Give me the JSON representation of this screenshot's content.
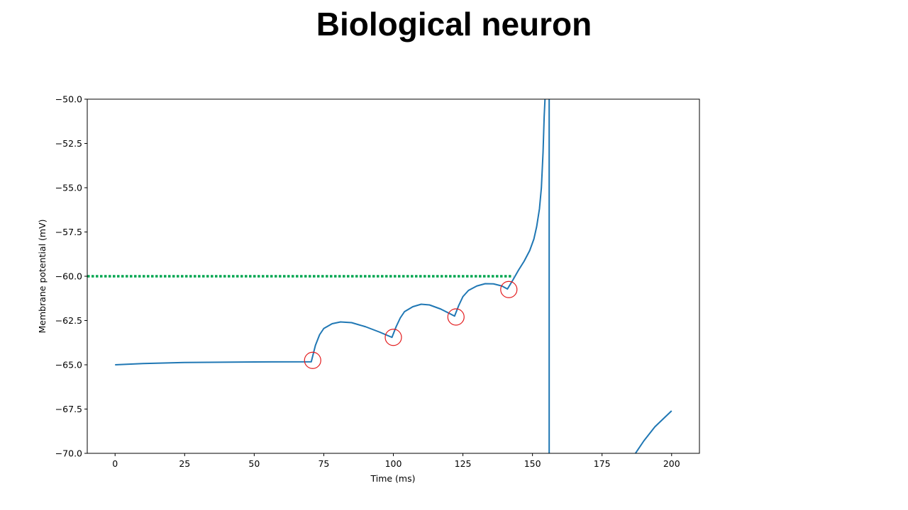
{
  "slide": {
    "title": "Biological neuron"
  },
  "chart_data": {
    "type": "line",
    "xlabel": "Time (ms)",
    "ylabel": "Membrane potential (mV)",
    "xlim": [
      -10,
      210
    ],
    "ylim": [
      -70.0,
      -50.0
    ],
    "xticks": [
      0,
      25,
      50,
      75,
      100,
      125,
      150,
      175,
      200
    ],
    "xtick_labels": [
      "0",
      "25",
      "50",
      "75",
      "100",
      "125",
      "150",
      "175",
      "200"
    ],
    "yticks": [
      -50.0,
      -52.5,
      -55.0,
      -57.5,
      -60.0,
      -62.5,
      -65.0,
      -67.5,
      -70.0
    ],
    "ytick_labels": [
      "−50.0",
      "−52.5",
      "−55.0",
      "−57.5",
      "−60.0",
      "−62.5",
      "−65.0",
      "−67.5",
      "−70.0"
    ],
    "grid": false,
    "series": [
      {
        "color": "#1f77b4",
        "points": [
          [
            0,
            -65.0
          ],
          [
            10,
            -64.93
          ],
          [
            25,
            -64.87
          ],
          [
            50,
            -64.84
          ],
          [
            70.5,
            -64.83
          ],
          [
            72,
            -63.9
          ],
          [
            73.5,
            -63.3
          ],
          [
            75,
            -62.95
          ],
          [
            78,
            -62.68
          ],
          [
            81,
            -62.58
          ],
          [
            85,
            -62.62
          ],
          [
            90,
            -62.85
          ],
          [
            95,
            -63.15
          ],
          [
            99.5,
            -63.45
          ],
          [
            101,
            -62.85
          ],
          [
            102.5,
            -62.35
          ],
          [
            104,
            -62.0
          ],
          [
            107,
            -61.72
          ],
          [
            110,
            -61.58
          ],
          [
            113,
            -61.62
          ],
          [
            117,
            -61.85
          ],
          [
            122,
            -62.25
          ],
          [
            123.5,
            -61.65
          ],
          [
            125,
            -61.15
          ],
          [
            127,
            -60.8
          ],
          [
            130,
            -60.55
          ],
          [
            133,
            -60.42
          ],
          [
            136,
            -60.43
          ],
          [
            139,
            -60.55
          ],
          [
            141,
            -60.72
          ],
          [
            143,
            -60.2
          ],
          [
            145,
            -59.65
          ],
          [
            147,
            -59.15
          ],
          [
            149,
            -58.55
          ],
          [
            150.5,
            -57.9
          ],
          [
            151.5,
            -57.2
          ],
          [
            152.5,
            -56.2
          ],
          [
            153.2,
            -55.0
          ],
          [
            153.8,
            -53.0
          ],
          [
            154.2,
            -51.0
          ],
          [
            154.5,
            -50.0
          ]
        ]
      },
      {
        "color": "#1f77b4",
        "points": [
          [
            156.0,
            -50.0
          ],
          [
            156.0,
            -70.0
          ]
        ]
      },
      {
        "color": "#1f77b4",
        "points": [
          [
            187,
            -70.0
          ],
          [
            190,
            -69.3
          ],
          [
            194,
            -68.5
          ],
          [
            200,
            -67.6
          ]
        ]
      }
    ],
    "threshold": {
      "y": -60.0,
      "x_range": [
        -10,
        143
      ],
      "color": "#00a550",
      "style": "dotted"
    },
    "markers": {
      "color": "#e31a1c",
      "points": [
        [
          71,
          -64.75
        ],
        [
          100,
          -63.45
        ],
        [
          122.5,
          -62.3
        ],
        [
          141.5,
          -60.75
        ]
      ]
    }
  }
}
